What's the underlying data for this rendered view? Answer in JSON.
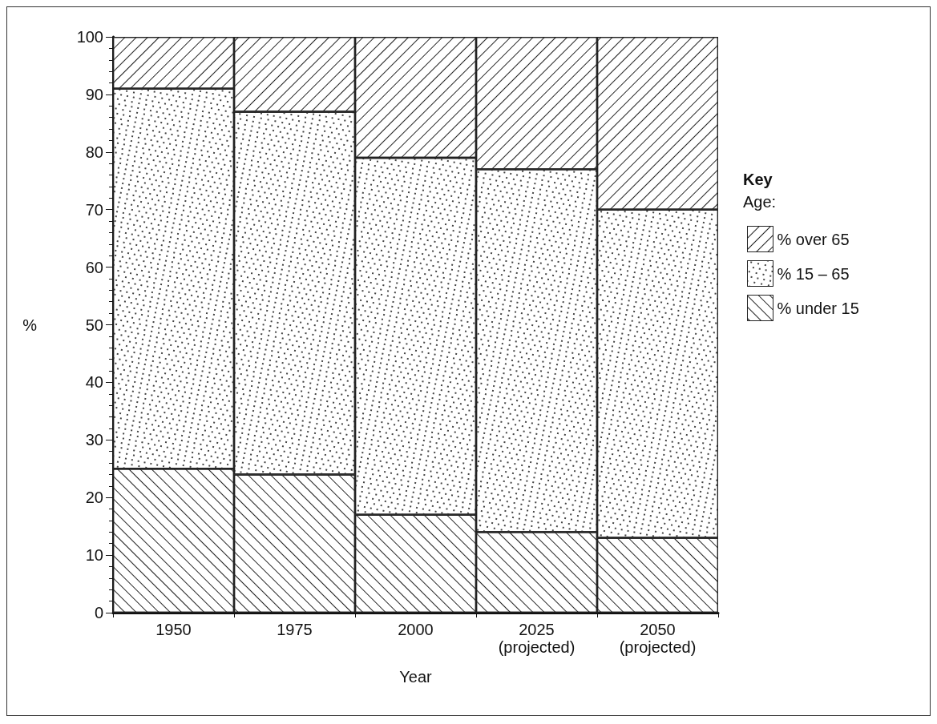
{
  "chart_data": {
    "type": "bar",
    "stacked": true,
    "xlabel": "Year",
    "ylabel": "%",
    "legend_title": "Key",
    "annotations": [
      "Age:"
    ],
    "categories": [
      "1950",
      "1975",
      "2000",
      "2025\n(projected)",
      "2050\n(projected)"
    ],
    "series": [
      {
        "name": "% under 15",
        "color": "#ffffff",
        "values": [
          25,
          24,
          17,
          14,
          13
        ]
      },
      {
        "name": "% 15 – 65",
        "color": "#ffffff",
        "values": [
          66,
          63,
          62,
          63,
          57
        ]
      },
      {
        "name": "% over 65",
        "color": "#ffffff",
        "values": [
          9,
          13,
          21,
          23,
          30
        ]
      }
    ],
    "ylim": [
      0,
      100
    ],
    "yticks": [
      0,
      10,
      20,
      30,
      40,
      50,
      60,
      70,
      80,
      90,
      100
    ],
    "grid": false,
    "legend": "right"
  }
}
